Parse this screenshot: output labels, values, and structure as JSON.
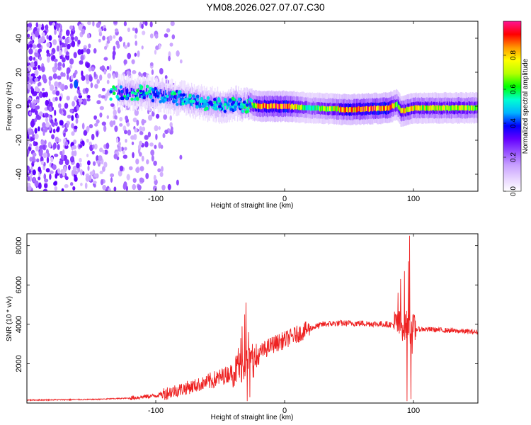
{
  "title": "YM08.2026.027.07.07.C30",
  "chart_data": [
    {
      "type": "heatmap",
      "xlabel": "Height of straight line (km)",
      "ylabel": "Frequency (Hz)",
      "xlim": [
        -200,
        150
      ],
      "ylim": [
        -50,
        50
      ],
      "xticks": [
        "-100",
        "0",
        "100"
      ],
      "xtick_values": [
        -100,
        0,
        100
      ],
      "yticks": [
        "-40",
        "-20",
        "0",
        "20",
        "40"
      ],
      "ytick_values": [
        -40,
        -20,
        0,
        20,
        40
      ],
      "colorbar": {
        "label": "Normalized spectral amplitude",
        "range": [
          0,
          1
        ],
        "ticks": [
          "0.0",
          "0.2",
          "0.4",
          "0.6",
          "0.8"
        ],
        "tick_values": [
          0.0,
          0.2,
          0.4,
          0.6,
          0.8
        ],
        "colors": [
          "#ffffff",
          "#e6d2ff",
          "#c8a0ff",
          "#9650ff",
          "#6400ff",
          "#0000ff",
          "#00b4ff",
          "#00ffd2",
          "#00ff00",
          "#b4ff00",
          "#ffff00",
          "#ff9600",
          "#ff0000",
          "#ff1493"
        ]
      },
      "ridge": {
        "x": [
          -130,
          -110,
          -90,
          -70,
          -55,
          -45,
          -38,
          -33,
          -28,
          -20,
          -10,
          0,
          20,
          50,
          80,
          87,
          90,
          100,
          150
        ],
        "f": [
          8,
          8,
          6,
          3,
          1,
          0,
          2,
          0,
          1,
          0,
          0,
          0,
          -1,
          -2,
          -1,
          1,
          -3,
          -1,
          -1
        ],
        "amp": [
          0.35,
          0.4,
          0.42,
          0.45,
          0.5,
          0.5,
          0.52,
          0.55,
          0.65,
          0.85,
          0.9,
          0.92,
          0.55,
          0.85,
          0.9,
          0.7,
          0.8,
          0.75,
          0.7
        ]
      },
      "noise_region": {
        "x_range": [
          -200,
          -95
        ],
        "f_range": [
          -50,
          50
        ],
        "amp_range": [
          0.1,
          0.3
        ]
      }
    },
    {
      "type": "line",
      "xlabel": "Height of straight line (km)",
      "ylabel": "SNR (10 * v/v)",
      "xlim": [
        -200,
        150
      ],
      "ylim": [
        0,
        8600
      ],
      "xticks": [
        "-100",
        "0",
        "100"
      ],
      "xtick_values": [
        -100,
        0,
        100
      ],
      "yticks": [
        "2000",
        "4000",
        "6000",
        "8000"
      ],
      "ytick_values": [
        2000,
        4000,
        6000,
        8000
      ],
      "color": "#ee2222",
      "trend": {
        "x": [
          -200,
          -150,
          -120,
          -100,
          -80,
          -60,
          -50,
          -40,
          -30,
          -22,
          -18,
          -10,
          0,
          10,
          20,
          30,
          40,
          60,
          80,
          90,
          95,
          97,
          100,
          110,
          150
        ],
        "y": [
          150,
          180,
          250,
          380,
          700,
          1050,
          1300,
          1600,
          2000,
          2200,
          2600,
          2950,
          3200,
          3500,
          3800,
          4000,
          4050,
          4050,
          4000,
          3950,
          3950,
          3800,
          3750,
          3750,
          3600
        ]
      },
      "spikes": [
        {
          "x": -30,
          "y": 5100
        },
        {
          "x": -31,
          "y": 4500
        },
        {
          "x": -33,
          "y": 3900
        },
        {
          "x": -34,
          "y": 3300
        },
        {
          "x": -28,
          "y": 3600
        },
        {
          "x": -36,
          "y": 2800
        },
        {
          "x": -25,
          "y": 3000
        },
        {
          "x": -29,
          "y": 100
        },
        {
          "x": -27,
          "y": 300
        },
        {
          "x": 97,
          "y": 8500
        },
        {
          "x": 96,
          "y": 7200
        },
        {
          "x": 93,
          "y": 6700
        },
        {
          "x": 90,
          "y": 6300
        },
        {
          "x": 88,
          "y": 5600
        },
        {
          "x": 95,
          "y": 100
        },
        {
          "x": 98,
          "y": 200
        },
        {
          "x": 99,
          "y": 2500
        }
      ]
    }
  ]
}
